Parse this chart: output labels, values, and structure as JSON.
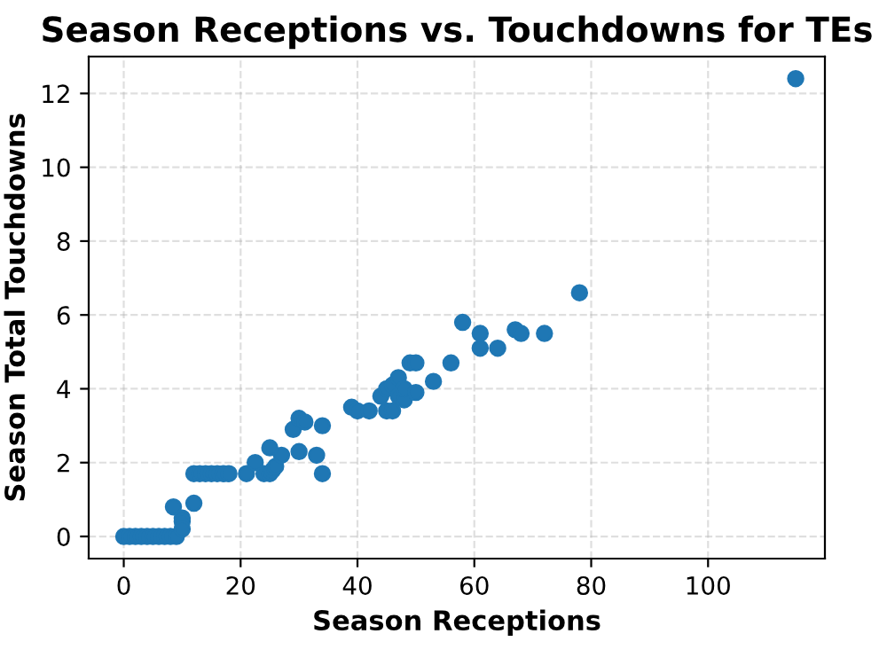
{
  "chart_data": {
    "type": "scatter",
    "title": "Season Receptions vs. Touchdowns for TEs",
    "xlabel": "Season Receptions",
    "ylabel": "Season Total Touchdowns",
    "x": [
      0,
      1,
      2,
      3,
      4,
      5,
      6,
      7,
      8,
      9,
      8.5,
      10,
      10,
      10,
      12,
      12,
      13,
      14,
      15,
      16,
      17,
      18,
      21,
      24,
      25,
      25.5,
      26,
      27,
      22.5,
      25,
      29,
      30,
      31,
      30,
      33,
      34,
      34,
      39,
      40,
      42,
      44,
      45,
      46,
      45,
      46,
      47,
      47,
      48,
      48,
      49,
      50,
      50,
      53,
      56,
      58,
      61,
      61,
      64,
      67,
      68,
      72,
      78,
      115
    ],
    "series": [
      {
        "color": "#1f77b4",
        "values": [
          0,
          0,
          0,
          0,
          0,
          0,
          0,
          0,
          0,
          0,
          0.8,
          0.5,
          0.4,
          0.2,
          0.9,
          1.7,
          1.7,
          1.7,
          1.7,
          1.7,
          1.7,
          1.7,
          1.7,
          1.7,
          1.7,
          1.8,
          1.9,
          2.2,
          2.0,
          2.4,
          2.9,
          3.2,
          3.1,
          2.3,
          2.2,
          1.7,
          3.0,
          3.5,
          3.4,
          3.4,
          3.8,
          4.0,
          4.1,
          3.4,
          3.4,
          4.3,
          3.8,
          3.7,
          4.0,
          4.7,
          4.7,
          3.9,
          4.2,
          4.7,
          5.8,
          5.5,
          5.1,
          5.1,
          5.6,
          5.5,
          5.5,
          6.6,
          12.4
        ]
      }
    ],
    "xlim": [
      -6,
      120
    ],
    "ylim": [
      -0.6,
      13
    ],
    "xticks": [
      0,
      20,
      40,
      60,
      80,
      100
    ],
    "yticks": [
      0,
      2,
      4,
      6,
      8,
      10,
      12
    ],
    "grid": true,
    "marker": "circle",
    "line_style": "dashed"
  }
}
